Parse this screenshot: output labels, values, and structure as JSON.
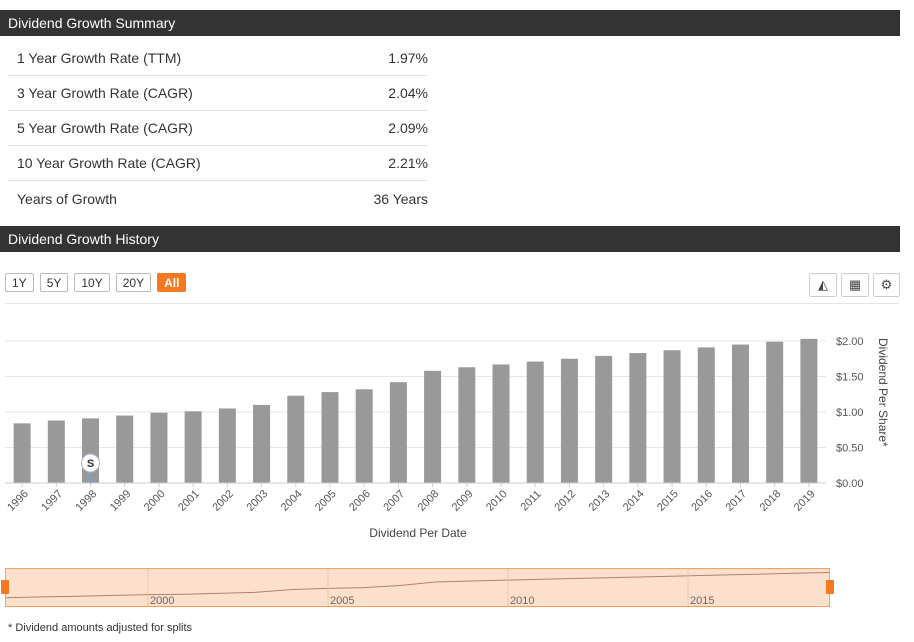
{
  "summary": {
    "header": "Dividend Growth Summary",
    "rows": [
      {
        "label": "1 Year Growth Rate (TTM)",
        "value": "1.97%"
      },
      {
        "label": "3 Year Growth Rate (CAGR)",
        "value": "2.04%"
      },
      {
        "label": "5 Year Growth Rate (CAGR)",
        "value": "2.09%"
      },
      {
        "label": "10 Year Growth Rate (CAGR)",
        "value": "2.21%"
      },
      {
        "label": "Years of Growth",
        "value": "36 Years"
      }
    ]
  },
  "history": {
    "header": "Dividend Growth History",
    "range_buttons": [
      "1Y",
      "5Y",
      "10Y",
      "20Y",
      "All"
    ],
    "active_range": "All",
    "tools": [
      {
        "name": "area-chart-icon",
        "glyph": "◭"
      },
      {
        "name": "table-icon",
        "glyph": "▦"
      },
      {
        "name": "gear-icon",
        "glyph": "⚙"
      }
    ],
    "split_marker": "S",
    "footnote": "* Dividend amounts adjusted for splits"
  },
  "chart_data": {
    "type": "bar",
    "categories": [
      "1996",
      "1997",
      "1998",
      "1999",
      "2000",
      "2001",
      "2002",
      "2003",
      "2004",
      "2005",
      "2006",
      "2007",
      "2008",
      "2009",
      "2010",
      "2011",
      "2012",
      "2013",
      "2014",
      "2015",
      "2016",
      "2017",
      "2018",
      "2019"
    ],
    "values": [
      0.84,
      0.88,
      0.91,
      0.95,
      0.99,
      1.01,
      1.05,
      1.1,
      1.23,
      1.28,
      1.32,
      1.42,
      1.58,
      1.63,
      1.67,
      1.71,
      1.75,
      1.79,
      1.83,
      1.87,
      1.91,
      1.95,
      1.99,
      2.03
    ],
    "xlabel": "Dividend Per Date",
    "ylabel": "Dividend Per Share*",
    "ylim": [
      0,
      2.0
    ],
    "yticks": [
      "$0.00",
      "$0.50",
      "$1.00",
      "$1.50",
      "$2.00"
    ],
    "y_axis_side": "right",
    "bar_color": "#999999",
    "grid": true
  },
  "navigator": {
    "labels": [
      "2000",
      "2005",
      "2010",
      "2015"
    ],
    "fill_color": "#fde0cc",
    "handle_color": "#f47920"
  }
}
